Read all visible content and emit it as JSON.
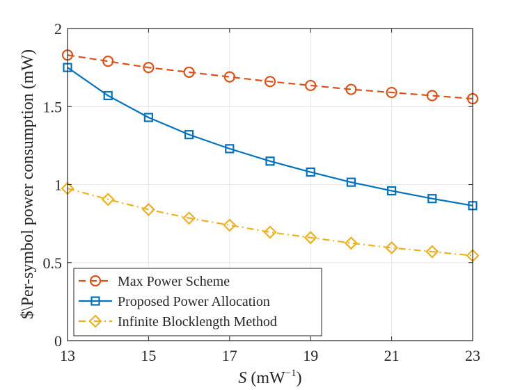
{
  "chart_data": {
    "type": "line",
    "xlabel_var": "S",
    "xlabel_unit": " (mW",
    "xlabel_exp": "−1",
    "xlabel_close": ")",
    "ylabel": "$\\Per-symbol power consumption (mW)",
    "xlim": [
      13,
      23
    ],
    "ylim": [
      0,
      2
    ],
    "xticks": [
      13,
      15,
      17,
      19,
      21,
      23
    ],
    "xtick_labels": [
      "13",
      "15",
      "17",
      "19",
      "21",
      "23"
    ],
    "yticks": [
      0,
      0.5,
      1,
      1.5,
      2
    ],
    "ytick_labels": [
      "0",
      "0.5",
      "1",
      "1.5",
      "2"
    ],
    "grid": true,
    "legend_position": "bottom-left",
    "x": [
      13,
      14,
      15,
      16,
      17,
      18,
      19,
      20,
      21,
      22,
      23
    ],
    "series": [
      {
        "name": "Max Power Scheme",
        "color": "#D95319",
        "line_style": "dashed",
        "marker": "circle",
        "values": [
          1.83,
          1.79,
          1.75,
          1.72,
          1.69,
          1.66,
          1.635,
          1.61,
          1.59,
          1.57,
          1.55
        ]
      },
      {
        "name": "Proposed Power Allocation",
        "color": "#0072BD",
        "line_style": "solid",
        "marker": "square",
        "values": [
          1.75,
          1.57,
          1.43,
          1.32,
          1.23,
          1.15,
          1.08,
          1.015,
          0.96,
          0.91,
          0.865
        ]
      },
      {
        "name": "Infinite Blocklength Method",
        "color": "#EDB120",
        "line_style": "dashdot",
        "marker": "diamond",
        "values": [
          0.975,
          0.905,
          0.84,
          0.785,
          0.74,
          0.695,
          0.66,
          0.625,
          0.595,
          0.57,
          0.545
        ]
      }
    ]
  }
}
